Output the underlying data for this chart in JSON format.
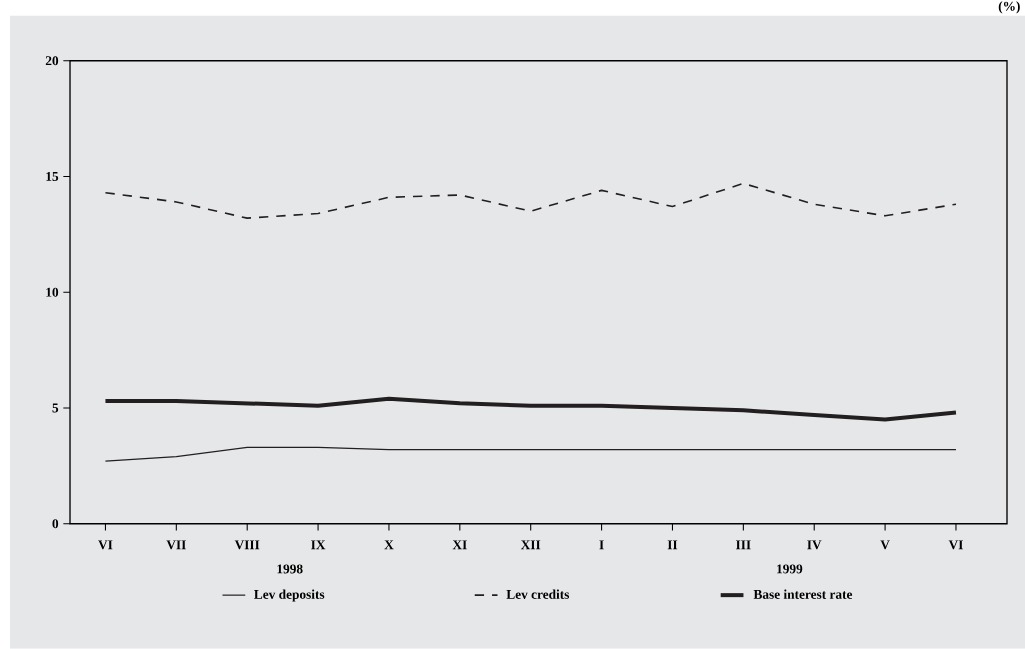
{
  "chart_data": {
    "type": "line",
    "categories": [
      "VI",
      "VII",
      "VIII",
      "IX",
      "X",
      "XI",
      "XII",
      "I",
      "II",
      "III",
      "IV",
      "V",
      "VI"
    ],
    "series": [
      {
        "name": "Lev deposits",
        "color": "#231f20",
        "line_style": "solid",
        "values": [
          2.7,
          2.9,
          3.3,
          3.3,
          3.2,
          3.2,
          3.2,
          3.2,
          3.2,
          3.2,
          3.2,
          3.2,
          3.2
        ]
      },
      {
        "name": "Lev credits",
        "color": "#231f20",
        "line_style": "dashed",
        "values": [
          14.3,
          13.9,
          13.2,
          13.4,
          14.1,
          14.2,
          13.5,
          14.4,
          13.7,
          14.7,
          13.8,
          13.3,
          13.8
        ]
      },
      {
        "name": "Base interest rate",
        "color": "#231f20",
        "line_style": "solid",
        "values": [
          5.3,
          5.3,
          5.2,
          5.1,
          5.4,
          5.2,
          5.1,
          5.1,
          5.0,
          4.9,
          4.7,
          4.5,
          4.8
        ]
      }
    ],
    "ylim": [
      0,
      20
    ],
    "yticks": [
      0,
      5,
      10,
      15,
      20
    ],
    "annotations": [
      "(%)",
      "1998",
      "1999"
    ],
    "grid": false,
    "legend": "bottom",
    "marker": "none"
  }
}
